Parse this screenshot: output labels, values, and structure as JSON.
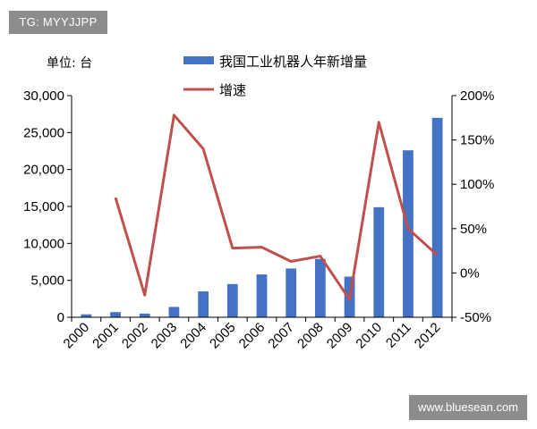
{
  "watermarks": {
    "top_left": "TG: MYYJJPP",
    "bottom_right": "www.bluesean.com"
  },
  "chart_data": {
    "type": "bar",
    "unit_label": "单位: 台",
    "categories": [
      "2000",
      "2001",
      "2002",
      "2003",
      "2004",
      "2005",
      "2006",
      "2007",
      "2008",
      "2009",
      "2010",
      "2011",
      "2012"
    ],
    "series": [
      {
        "name": "我国工业机器人年新增量",
        "type": "bar",
        "axis": "left",
        "color": "#4472c4",
        "values": [
          400,
          700,
          500,
          1400,
          3500,
          4500,
          5800,
          6600,
          7900,
          5500,
          14900,
          22600,
          27000
        ]
      },
      {
        "name": "增速",
        "type": "line",
        "axis": "right",
        "color": "#c0504d",
        "values": [
          null,
          85,
          -25,
          178,
          140,
          28,
          29,
          13,
          19,
          -30,
          170,
          50,
          20
        ]
      }
    ],
    "y_left": {
      "ylim": [
        0,
        30000
      ],
      "ticks": [
        "0",
        "5,000",
        "10,000",
        "15,000",
        "20,000",
        "25,000",
        "30,000"
      ]
    },
    "y_right": {
      "ylim": [
        -50,
        200
      ],
      "ticks": [
        "-50%",
        "0%",
        "50%",
        "100%",
        "150%",
        "200%"
      ]
    },
    "legend_position": "top",
    "grid": false
  }
}
